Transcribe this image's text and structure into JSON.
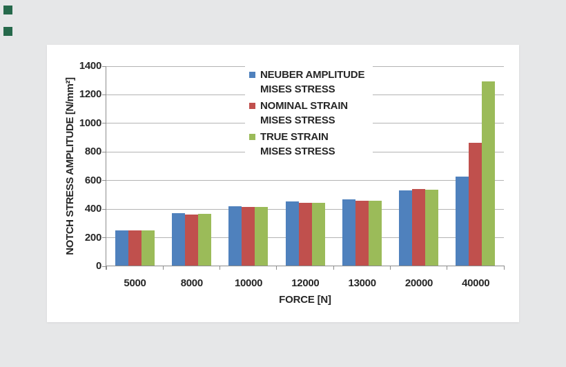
{
  "page": {
    "background_color": "#E6E7E8",
    "card_color": "#FFFFFF",
    "corner_markers_color": "#26694B",
    "text_color": "#262626",
    "gridline_color": "#B3B3B3",
    "axis_color": "#8C8C8C"
  },
  "chart_data": {
    "type": "bar",
    "categories": [
      "5000",
      "8000",
      "10000",
      "12000",
      "13000",
      "20000",
      "40000"
    ],
    "series": [
      {
        "name": "NEUBER AMPLITUDE MISES STRESS",
        "legend_line1": "NEUBER AMPLITUDE",
        "legend_line2": "MISES STRESS",
        "color": "#4F81BD",
        "values": [
          245,
          368,
          417,
          449,
          465,
          527,
          625
        ]
      },
      {
        "name": "NOMINAL STRAIN MISES STRESS",
        "legend_line1": "NOMINAL STRAIN",
        "legend_line2": "MISES STRESS",
        "color": "#C0504D",
        "values": [
          245,
          358,
          410,
          437,
          454,
          536,
          860
        ]
      },
      {
        "name": "TRUE STRAIN MISES STRESS",
        "legend_line1": "TRUE STRAIN",
        "legend_line2": "MISES STRESS",
        "color": "#9BBB59",
        "values": [
          247,
          360,
          412,
          441,
          456,
          533,
          1290
        ]
      }
    ],
    "xlabel": "FORCE [N]",
    "ylabel": "NOTCH STRESS AMPLITUDE  [N/mm²]",
    "ylim": [
      0,
      1400
    ],
    "ytick_step": 200,
    "yticks": [
      0,
      200,
      400,
      600,
      800,
      1000,
      1200,
      1400
    ],
    "grid": true,
    "legend_position": "inside-top-center"
  }
}
